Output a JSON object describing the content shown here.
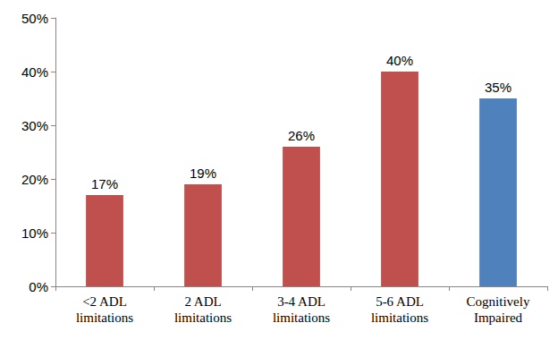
{
  "chart_data": {
    "type": "bar",
    "categories": [
      "<2 ADL\nlimitations",
      "2 ADL\nlimitations",
      "3-4 ADL\nlimitations",
      "5-6 ADL\nlimitations",
      "Cognitively\nImpaired"
    ],
    "values": [
      17,
      19,
      26,
      40,
      35
    ],
    "value_labels": [
      "17%",
      "19%",
      "26%",
      "40%",
      "35%"
    ],
    "colors": [
      "#c0504d",
      "#c0504d",
      "#c0504d",
      "#c0504d",
      "#4f81bd"
    ],
    "ylim": [
      0,
      50
    ],
    "yticks": [
      {
        "value": 0,
        "label": "0%"
      },
      {
        "value": 10,
        "label": "10%"
      },
      {
        "value": 20,
        "label": "20%"
      },
      {
        "value": 30,
        "label": "30%"
      },
      {
        "value": 40,
        "label": "40%"
      },
      {
        "value": 50,
        "label": "50%"
      }
    ],
    "grid": false,
    "data_labels": true
  }
}
